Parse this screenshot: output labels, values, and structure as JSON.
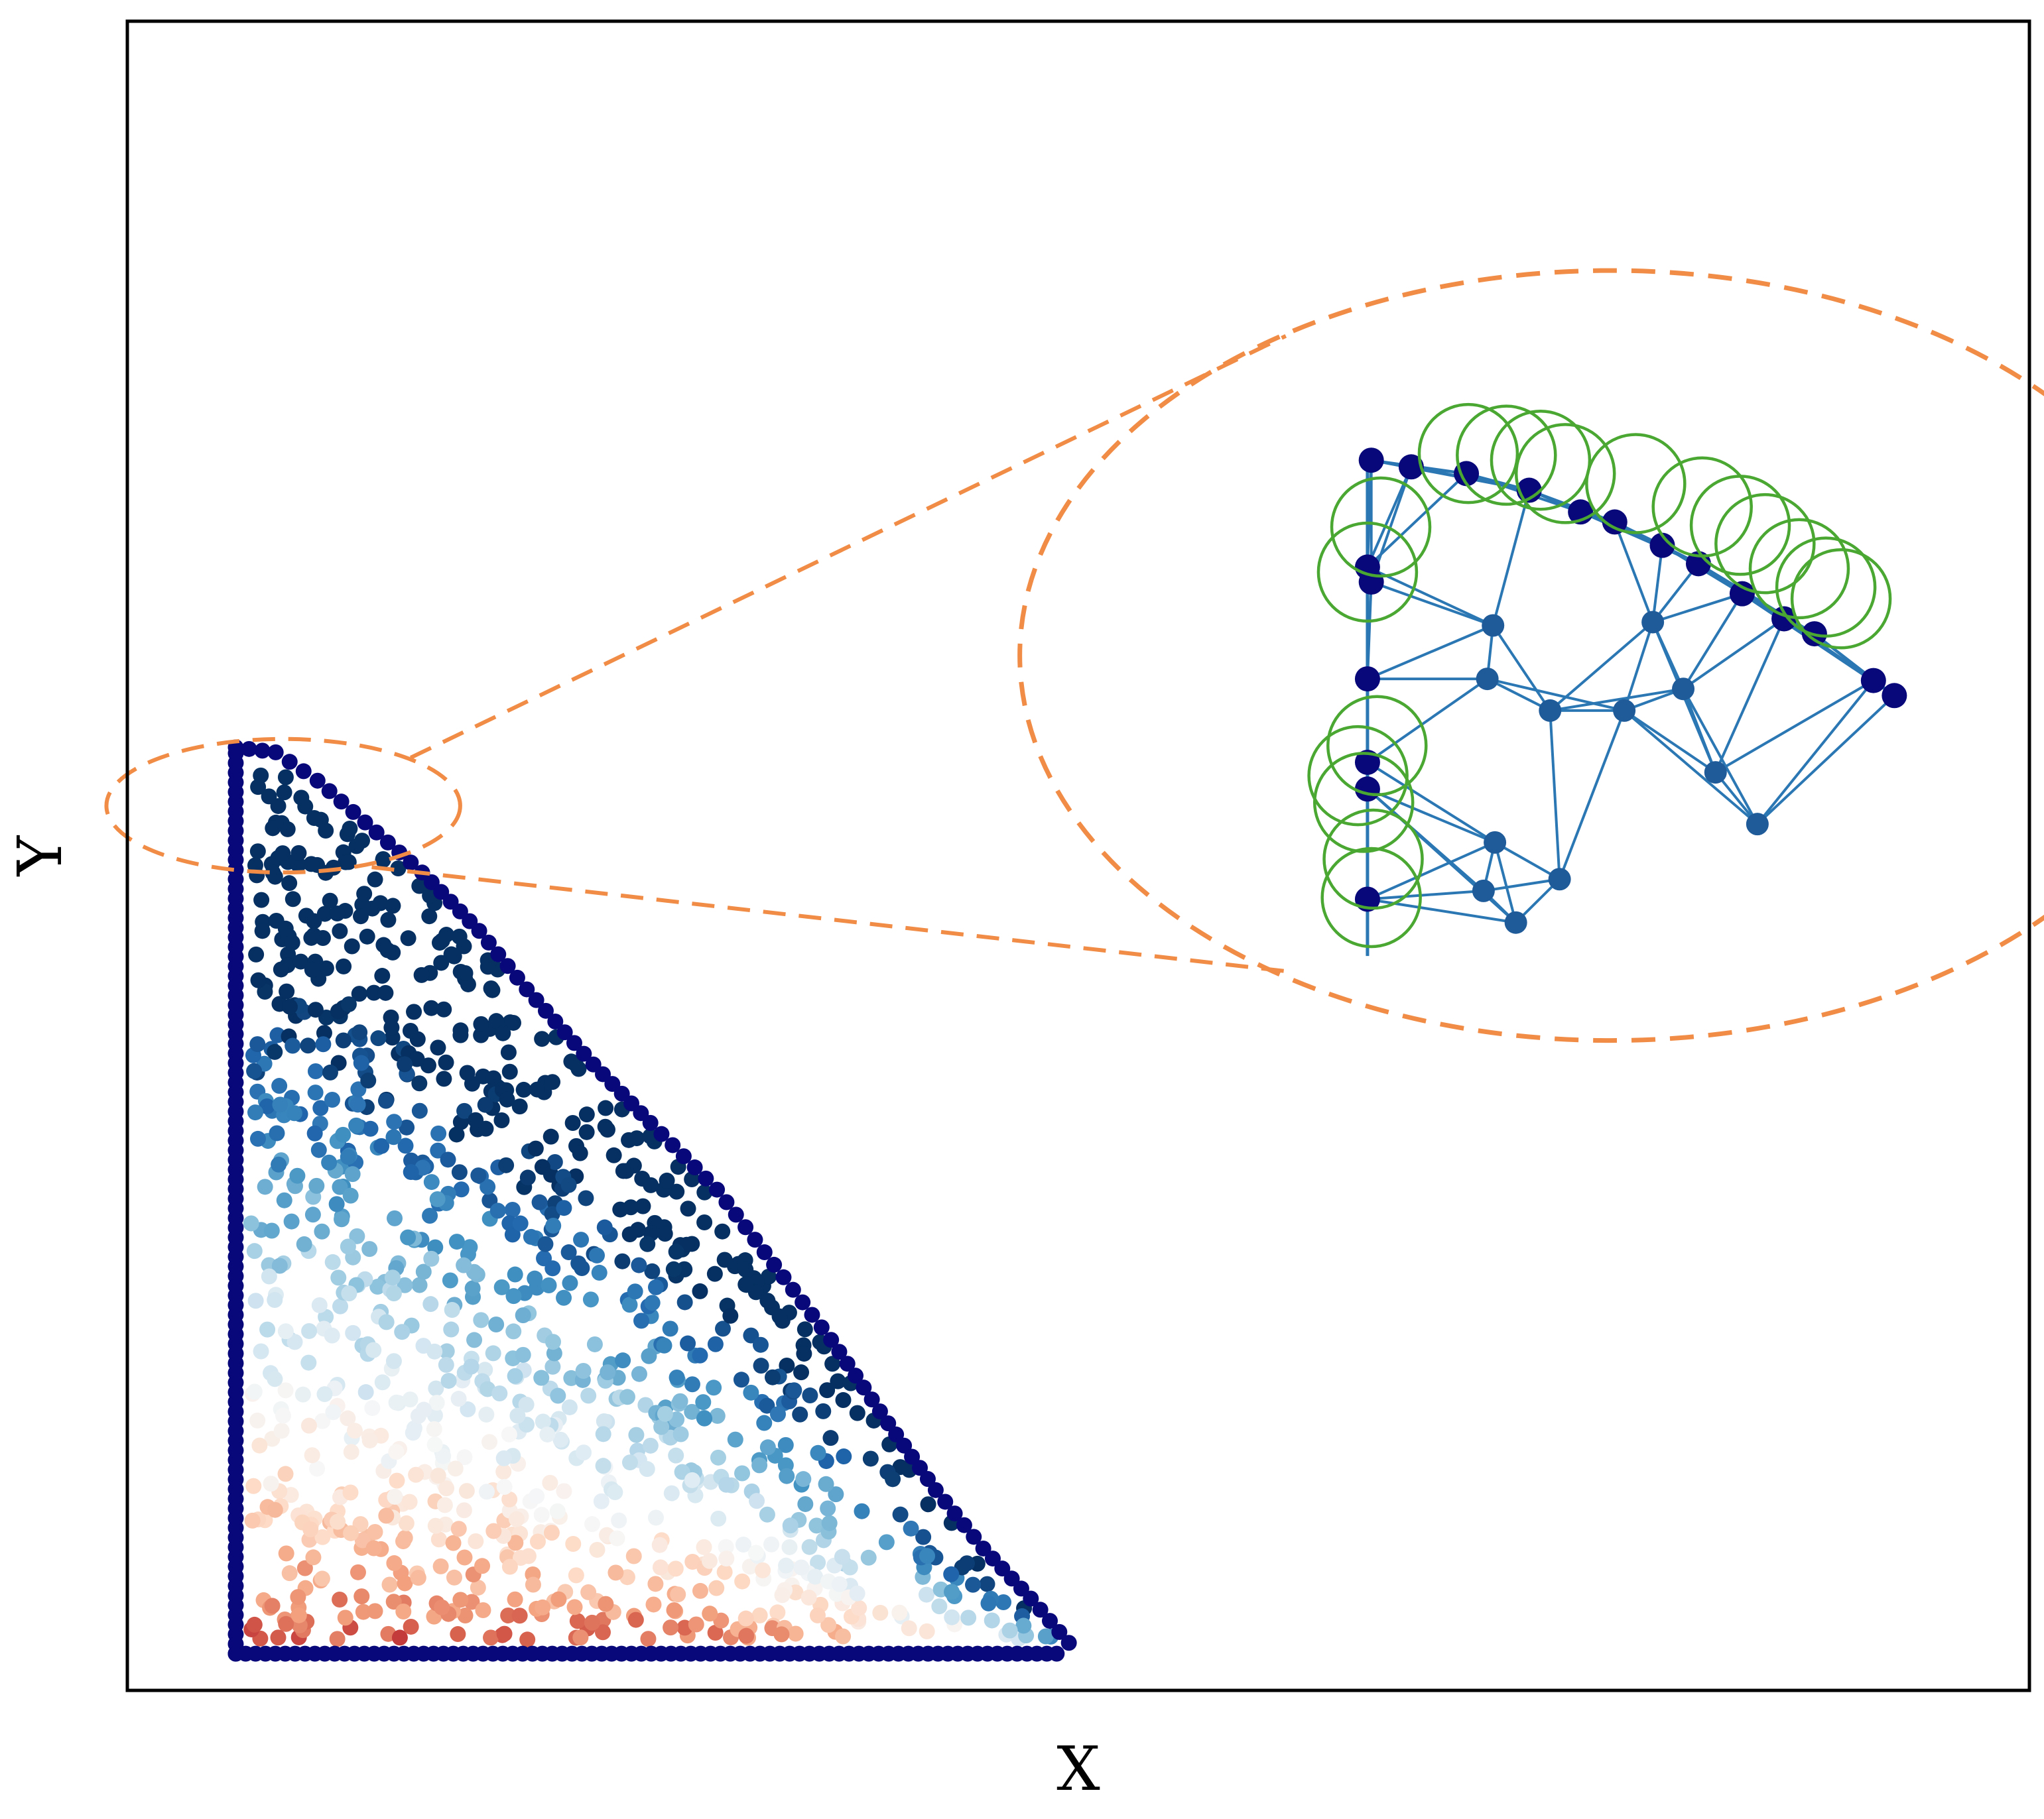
{
  "chart_data": {
    "type": "scatter",
    "title": "",
    "xlabel": "X",
    "ylabel": "Y",
    "xlim": [
      0,
      1
    ],
    "ylim": [
      0,
      1
    ],
    "ticks": "none",
    "grid": false,
    "legend": "none",
    "colormap": "RdBu",
    "colors": {
      "boundary": "#08087a",
      "frame": "#000000",
      "zoom_outline": "#f08c46",
      "mesh_edge": "#2a77b4",
      "mesh_node": "#1f5a99",
      "support_circle": "#4aa832"
    },
    "domain_shape": "right triangle with convex curved hypotenuse",
    "boundary_points": {
      "left_edge": {
        "x": 0.057,
        "y_range": [
          0.022,
          0.565
        ]
      },
      "bottom_edge": {
        "y": 0.022,
        "x_range": [
          0.057,
          0.49
        ]
      },
      "curved_edge": [
        [
          0.057,
          0.565
        ],
        [
          0.078,
          0.562
        ],
        [
          0.1,
          0.545
        ],
        [
          0.125,
          0.52
        ],
        [
          0.155,
          0.49
        ],
        [
          0.185,
          0.455
        ],
        [
          0.21,
          0.42
        ],
        [
          0.245,
          0.375
        ],
        [
          0.275,
          0.34
        ],
        [
          0.31,
          0.3
        ],
        [
          0.34,
          0.255
        ],
        [
          0.37,
          0.21
        ],
        [
          0.4,
          0.16
        ],
        [
          0.425,
          0.12
        ],
        [
          0.45,
          0.085
        ],
        [
          0.475,
          0.055
        ],
        [
          0.49,
          0.035
        ],
        [
          0.5,
          0.022
        ]
      ]
    },
    "interior_value_range": [
      0,
      1
    ],
    "zoom_region": {
      "x_center": 0.082,
      "y_center": 0.53,
      "x_radius": 0.093,
      "y_radius": 0.04
    },
    "inset": {
      "type": "mesh",
      "x_center": 0.78,
      "y_center": 0.62,
      "x_radius": 0.42,
      "y_radius": 0.186,
      "nodes": [
        [
          0.654,
          0.737
        ],
        [
          0.675,
          0.733
        ],
        [
          0.704,
          0.729
        ],
        [
          0.737,
          0.719
        ],
        [
          0.764,
          0.706
        ],
        [
          0.782,
          0.7
        ],
        [
          0.807,
          0.686
        ],
        [
          0.826,
          0.675
        ],
        [
          0.849,
          0.657
        ],
        [
          0.871,
          0.642
        ],
        [
          0.887,
          0.633
        ],
        [
          0.918,
          0.605
        ],
        [
          0.929,
          0.596
        ],
        [
          0.652,
          0.673
        ],
        [
          0.654,
          0.664
        ],
        [
          0.652,
          0.606
        ],
        [
          0.652,
          0.556
        ],
        [
          0.652,
          0.54
        ],
        [
          0.652,
          0.474
        ],
        [
          0.718,
          0.638
        ],
        [
          0.715,
          0.606
        ],
        [
          0.748,
          0.587
        ],
        [
          0.787,
          0.587
        ],
        [
          0.835,
          0.55
        ],
        [
          0.857,
          0.519
        ],
        [
          0.719,
          0.508
        ],
        [
          0.713,
          0.479
        ],
        [
          0.753,
          0.486
        ],
        [
          0.73,
          0.46
        ],
        [
          0.802,
          0.64
        ],
        [
          0.818,
          0.6
        ]
      ],
      "support_circles": [
        [
          0.705,
          0.741
        ],
        [
          0.743,
          0.737
        ],
        [
          0.725,
          0.74
        ],
        [
          0.756,
          0.729
        ],
        [
          0.793,
          0.723
        ],
        [
          0.828,
          0.709
        ],
        [
          0.848,
          0.698
        ],
        [
          0.861,
          0.687
        ],
        [
          0.879,
          0.672
        ],
        [
          0.893,
          0.661
        ],
        [
          0.901,
          0.654
        ],
        [
          0.659,
          0.697
        ],
        [
          0.652,
          0.67
        ],
        [
          0.657,
          0.566
        ],
        [
          0.647,
          0.548
        ],
        [
          0.65,
          0.532
        ],
        [
          0.655,
          0.498
        ],
        [
          0.654,
          0.475
        ]
      ]
    }
  }
}
